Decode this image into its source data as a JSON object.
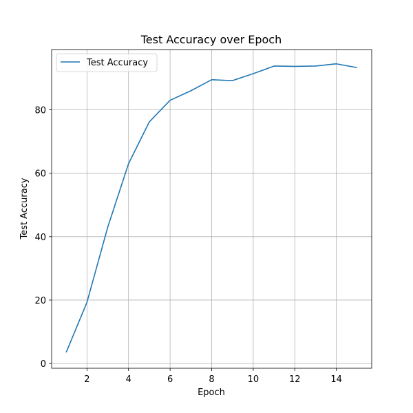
{
  "chart_data": {
    "type": "line",
    "title": "Test Accuracy over Epoch",
    "xlabel": "Epoch",
    "ylabel": "Test Accuracy",
    "xlim": [
      0.3,
      15.7
    ],
    "ylim": [
      -1.5,
      99.0
    ],
    "xticks": [
      2,
      4,
      6,
      8,
      10,
      12,
      14
    ],
    "yticks": [
      0,
      20,
      40,
      60,
      80
    ],
    "grid": true,
    "legend_position": "top-left",
    "x": [
      1,
      2,
      3,
      4,
      5,
      6,
      7,
      8,
      9,
      10,
      11,
      12,
      13,
      14,
      15
    ],
    "series": [
      {
        "name": "Test Accuracy",
        "color": "#1f77b4",
        "values": [
          3.5,
          19.3,
          43.0,
          63.0,
          76.2,
          83.0,
          86.0,
          89.5,
          89.2,
          91.4,
          93.8,
          93.7,
          93.8,
          94.5,
          93.3
        ]
      }
    ]
  }
}
